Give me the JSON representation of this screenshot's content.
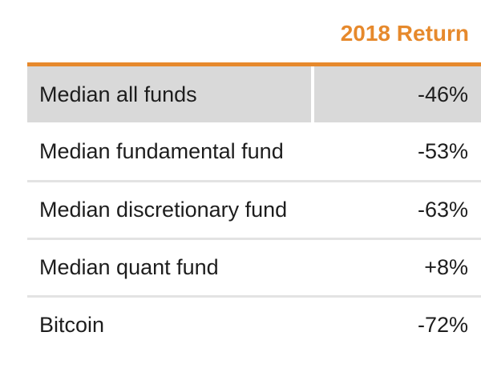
{
  "header": {
    "column_title": "2018 Return"
  },
  "table": {
    "rows": [
      {
        "label": "Median all funds",
        "value": "-46%",
        "highlighted": true
      },
      {
        "label": "Median fundamental fund",
        "value": "-53%",
        "highlighted": false
      },
      {
        "label": "Median discretionary fund",
        "value": "-63%",
        "highlighted": false
      },
      {
        "label": "Median quant fund",
        "value": "+8%",
        "highlighted": false
      },
      {
        "label": "Bitcoin",
        "value": "-72%",
        "highlighted": false
      }
    ]
  },
  "chart_data": {
    "type": "table",
    "title": "2018 Return",
    "columns": [
      "",
      "2018 Return"
    ],
    "rows": [
      [
        "Median all funds",
        "-46%"
      ],
      [
        "Median fundamental fund",
        "-53%"
      ],
      [
        "Median discretionary fund",
        "-63%"
      ],
      [
        "Median quant fund",
        "+8%"
      ],
      [
        "Bitcoin",
        "-72%"
      ]
    ],
    "values_percent": [
      -46,
      -53,
      -63,
      8,
      -72
    ],
    "layout": {
      "header_alignment": "right",
      "values_alignment": "right",
      "first_row_highlighted": true,
      "top_rule": "thick-orange",
      "row_separators": "thin-light-gray"
    }
  },
  "colors": {
    "accent_orange": "#E6892C",
    "highlight_row_gray": "#D9D9D9",
    "separator_gray": "#E3E3E3",
    "text": "#1d1d1d",
    "background": "#FFFFFF"
  }
}
